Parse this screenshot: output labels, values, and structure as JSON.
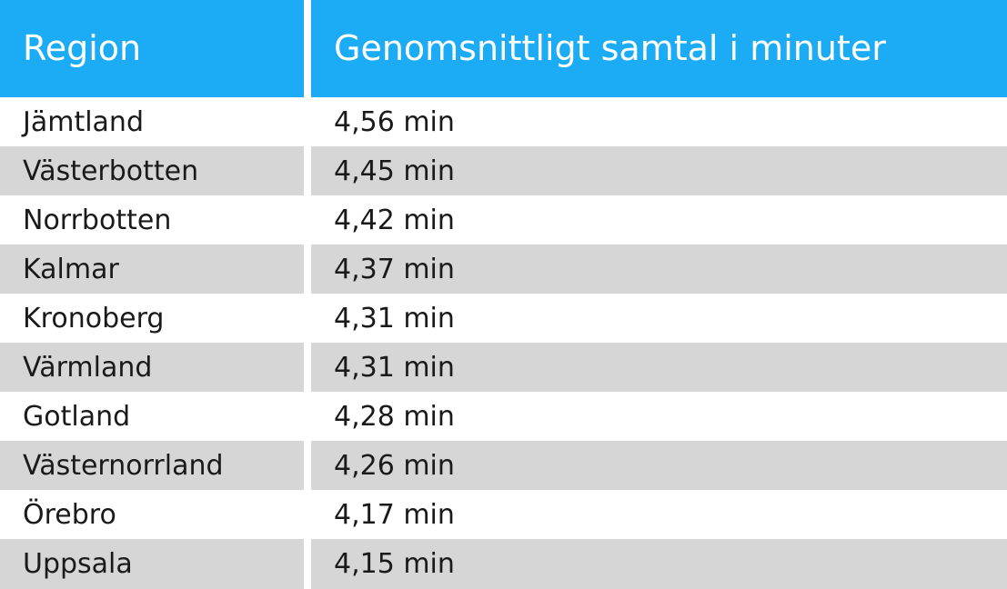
{
  "table": {
    "headers": {
      "region": "Region",
      "average": "Genomsnittligt samtal i minuter"
    },
    "rows": [
      {
        "region": "Jämtland",
        "value": "4,56 min"
      },
      {
        "region": "Västerbotten",
        "value": "4,45 min"
      },
      {
        "region": "Norrbotten",
        "value": "4,42 min"
      },
      {
        "region": "Kalmar",
        "value": "4,37 min"
      },
      {
        "region": "Kronoberg",
        "value": "4,31 min"
      },
      {
        "region": "Värmland",
        "value": "4,31 min"
      },
      {
        "region": "Gotland",
        "value": "4,28 min"
      },
      {
        "region": "Västernorrland",
        "value": "4,26 min"
      },
      {
        "region": "Örebro",
        "value": "4,17 min"
      },
      {
        "region": "Uppsala",
        "value": "4,15 min"
      }
    ]
  },
  "colors": {
    "header_bg": "#1cabf5",
    "header_text": "#ffffff",
    "row_shaded": "#d6d6d6",
    "row_plain": "#ffffff"
  }
}
